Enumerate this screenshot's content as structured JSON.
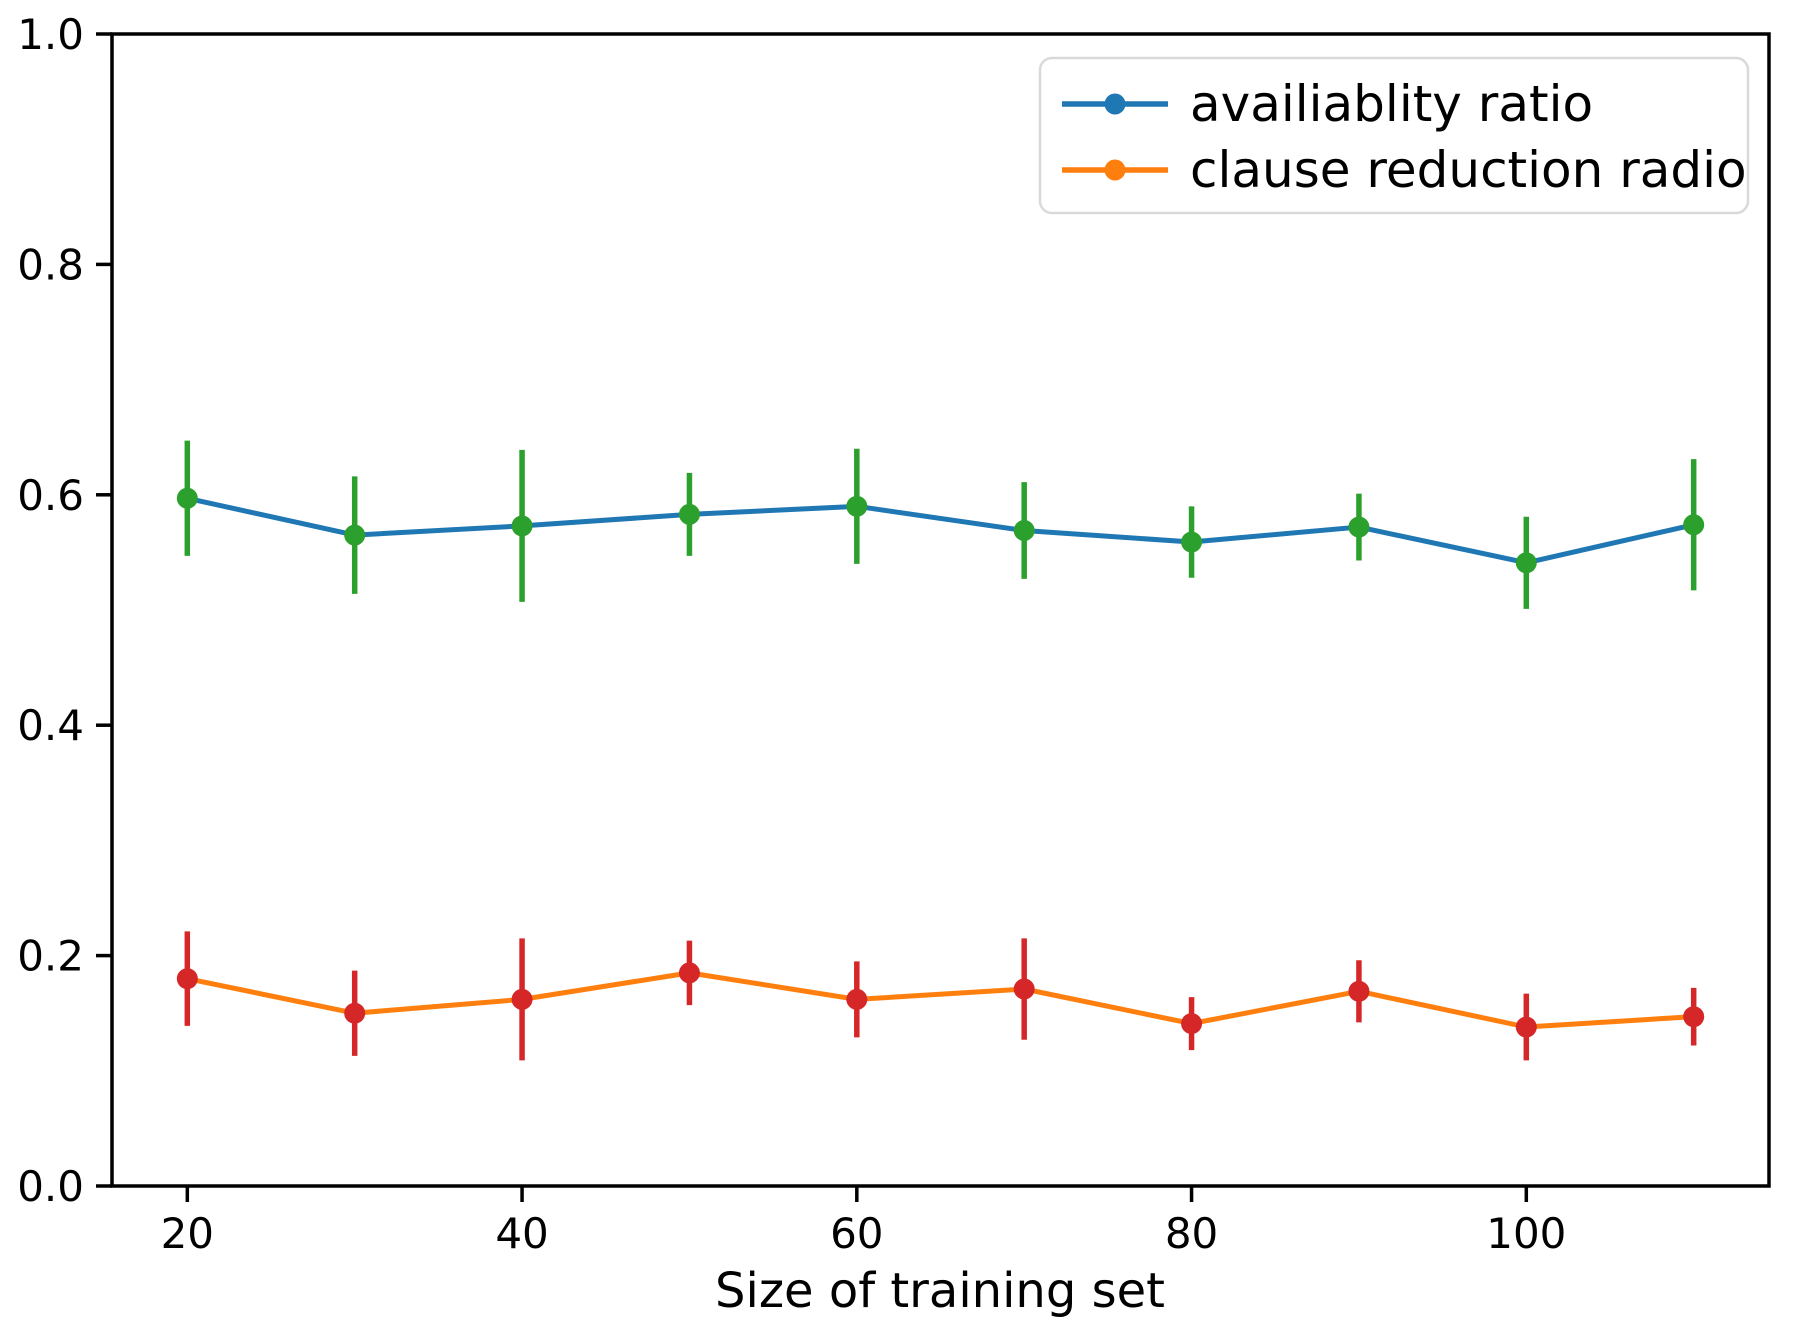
{
  "chart_data": {
    "type": "line",
    "title": "",
    "xlabel": "Size of training set",
    "ylabel": "",
    "grid": false,
    "legend_position": "upper right",
    "background_color": "#ffffff",
    "axis_color": "#000000",
    "legend_border_color": "#d9d9d9",
    "xlim": [
      15.5,
      114.5
    ],
    "ylim": [
      0.0,
      1.0
    ],
    "xtick_values": [
      20,
      40,
      60,
      80,
      100
    ],
    "xtick_labels": [
      "20",
      "40",
      "60",
      "80",
      "100"
    ],
    "ytick_values": [
      0.0,
      0.2,
      0.4,
      0.6,
      0.8,
      1.0
    ],
    "ytick_labels": [
      "0.0",
      "0.2",
      "0.4",
      "0.6",
      "0.8",
      "1.0"
    ],
    "x": [
      20,
      30,
      40,
      50,
      60,
      70,
      80,
      90,
      100,
      110
    ],
    "series": [
      {
        "name": "availiablity ratio",
        "line_color": "#1f77b4",
        "error_color": "#2ca02c",
        "values": [
          0.597,
          0.565,
          0.573,
          0.583,
          0.59,
          0.569,
          0.559,
          0.572,
          0.541,
          0.574
        ],
        "errors": [
          0.05,
          0.051,
          0.066,
          0.036,
          0.05,
          0.042,
          0.031,
          0.029,
          0.04,
          0.057
        ]
      },
      {
        "name": "clause reduction radio",
        "line_color": "#ff7f0e",
        "error_color": "#d62728",
        "values": [
          0.18,
          0.15,
          0.162,
          0.185,
          0.162,
          0.171,
          0.141,
          0.169,
          0.138,
          0.147
        ],
        "errors": [
          0.041,
          0.037,
          0.053,
          0.028,
          0.033,
          0.044,
          0.023,
          0.027,
          0.029,
          0.025
        ]
      }
    ]
  }
}
